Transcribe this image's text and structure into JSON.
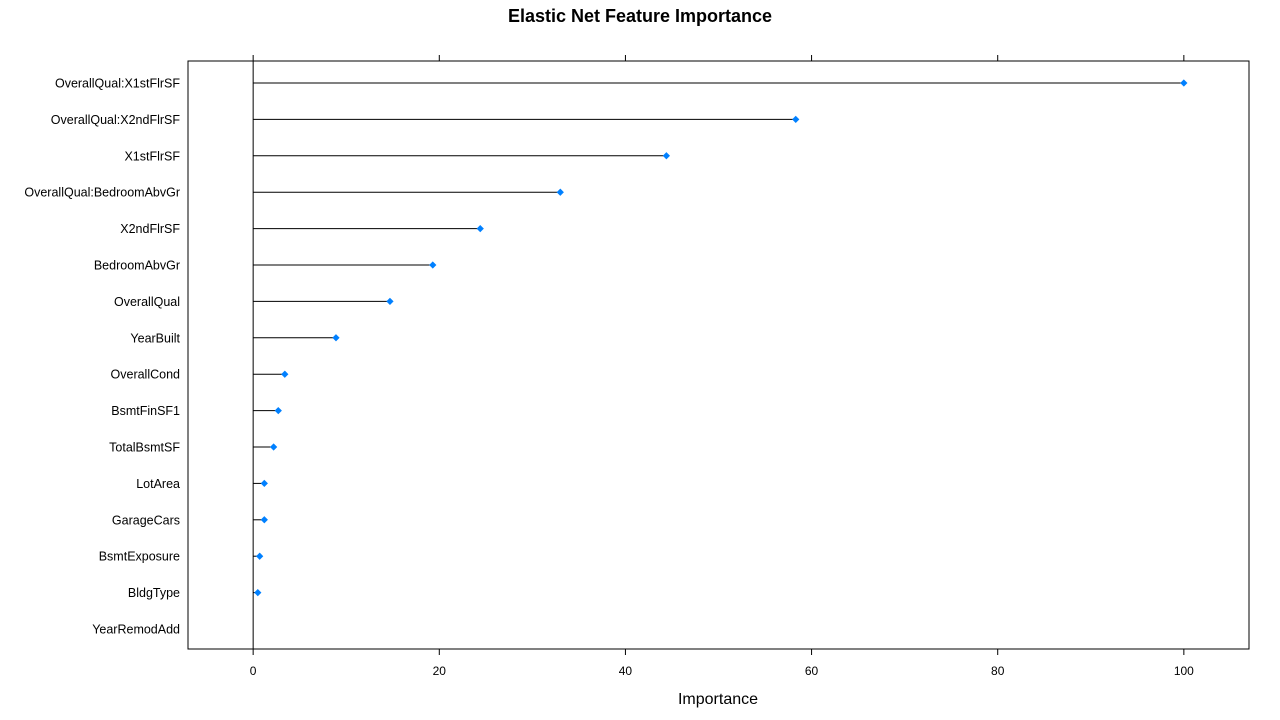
{
  "chart_data": {
    "type": "dot",
    "title": "Elastic Net Feature Importance",
    "xlabel": "Importance",
    "ylabel": "",
    "xlim": [
      -7,
      107
    ],
    "xticks": [
      0,
      20,
      40,
      60,
      80,
      100
    ],
    "categories": [
      "OverallQual:X1stFlrSF",
      "OverallQual:X2ndFlrSF",
      "X1stFlrSF",
      "OverallQual:BedroomAbvGr",
      "X2ndFlrSF",
      "BedroomAbvGr",
      "OverallQual",
      "YearBuilt",
      "OverallCond",
      "BsmtFinSF1",
      "TotalBsmtSF",
      "LotArea",
      "GarageCars",
      "BsmtExposure",
      "BldgType",
      "YearRemodAdd"
    ],
    "values": [
      100,
      58.3,
      44.4,
      33.0,
      24.4,
      19.3,
      14.7,
      8.9,
      3.4,
      2.7,
      2.2,
      1.2,
      1.2,
      0.7,
      0.5,
      0
    ],
    "grid": false,
    "legend": "none",
    "colors": {
      "point": "#0080ff",
      "stem": "#000000",
      "axis": "#000000"
    }
  }
}
